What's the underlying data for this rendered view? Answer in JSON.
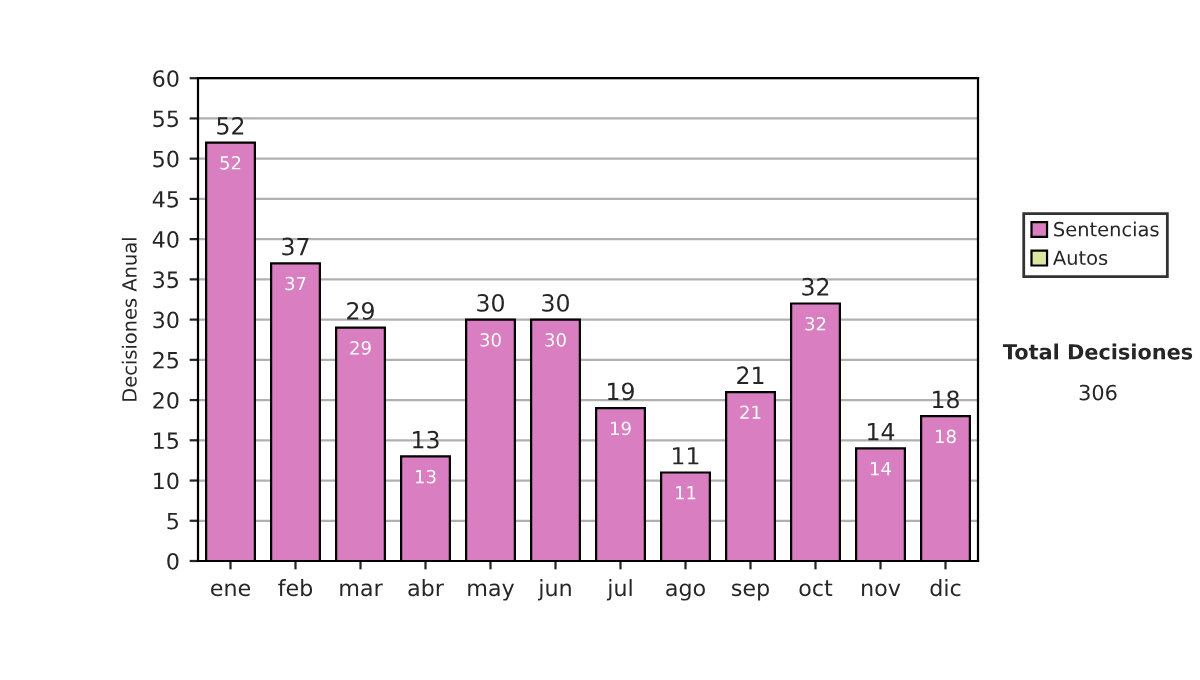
{
  "chart_data": {
    "type": "bar",
    "stacked": true,
    "ylabel": "Decisiones Anual",
    "categories": [
      "ene",
      "feb",
      "mar",
      "abr",
      "may",
      "jun",
      "jul",
      "ago",
      "sep",
      "oct",
      "nov",
      "dic"
    ],
    "series": [
      {
        "name": "Sentencias",
        "color": "#d97ec0",
        "values": [
          52,
          37,
          29,
          13,
          30,
          30,
          19,
          11,
          21,
          32,
          14,
          18
        ],
        "value_labels": [
          "52",
          "37",
          "29",
          "13",
          "30",
          "30",
          "19",
          "11",
          "21",
          "32",
          "14",
          "18"
        ]
      },
      {
        "name": "Autos",
        "color": "#d8e8a0",
        "values": [
          null,
          null,
          null,
          null,
          null,
          null,
          null,
          null,
          null,
          null,
          null,
          null
        ]
      }
    ],
    "totals": [
      "52",
      "37",
      "29",
      "13",
      "30",
      "30",
      "19",
      "11",
      "21",
      "32",
      "14",
      "18"
    ],
    "ylim": [
      0,
      60
    ],
    "yticks": [
      0,
      5,
      10,
      15,
      20,
      25,
      30,
      35,
      40,
      45,
      50,
      55,
      60
    ],
    "grid": "y",
    "legend": "right",
    "annotations": [
      "Total Decisiones",
      "306"
    ]
  }
}
